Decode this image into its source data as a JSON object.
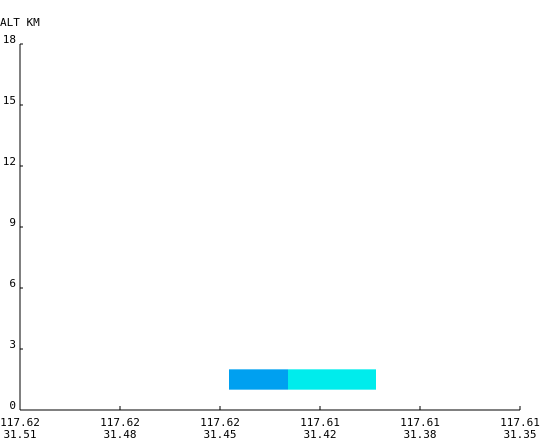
{
  "chart_data": {
    "type": "bar",
    "ylabel": "ALT KM",
    "ylim": [
      0,
      18
    ],
    "y_ticks": [
      "0",
      "3",
      "6",
      "9",
      "12",
      "15",
      "18"
    ],
    "x_ticks": [
      {
        "lon": "117.62",
        "lat": "31.51"
      },
      {
        "lon": "117.62",
        "lat": "31.48"
      },
      {
        "lon": "117.62",
        "lat": "31.45"
      },
      {
        "lon": "117.61",
        "lat": "31.42"
      },
      {
        "lon": "117.61",
        "lat": "31.38"
      },
      {
        "lon": "117.61",
        "lat": "31.35"
      }
    ],
    "segments": [
      {
        "x_start": 2.09,
        "x_end": 2.68,
        "y_bottom": 1.0,
        "y_top": 2.0,
        "color": "#00a0f0"
      },
      {
        "x_start": 2.68,
        "x_end": 3.56,
        "y_bottom": 1.0,
        "y_top": 2.0,
        "color": "#00ecec"
      }
    ],
    "grid": false,
    "legend": "none"
  }
}
